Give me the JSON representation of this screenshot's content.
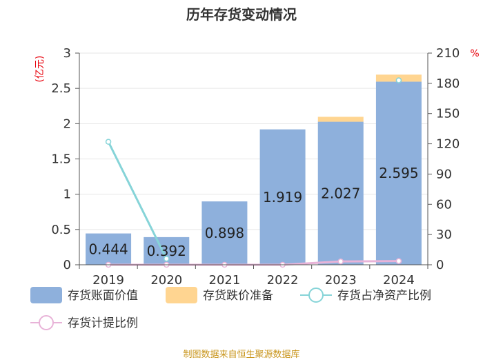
{
  "title": "历年存货变动情况",
  "left_unit": "(亿元)",
  "right_unit": "%",
  "source": "制图数据来自恒生聚源数据库",
  "colors": {
    "book_value": "#8eb0dc",
    "provision": "#ffd591",
    "ratio_net_assets": "#86d4d8",
    "provision_ratio": "#e8b3d8"
  },
  "chart_data": {
    "type": "bar",
    "categories": [
      "2019",
      "2020",
      "2021",
      "2022",
      "2023",
      "2024"
    ],
    "y_left": {
      "min": 0,
      "max": 3,
      "ticks": [
        "0",
        "0.5",
        "1",
        "1.5",
        "2",
        "2.5",
        "3"
      ]
    },
    "y_right": {
      "min": 0,
      "max": 210,
      "ticks": [
        "0",
        "30",
        "60",
        "90",
        "120",
        "150",
        "180",
        "210"
      ]
    },
    "series": [
      {
        "name": "存货账面价值",
        "kind": "bar",
        "axis": "left",
        "values": [
          0.444,
          0.392,
          0.898,
          1.919,
          2.027,
          2.595
        ],
        "labels": [
          "0.444",
          "0.392",
          "0.898",
          "1.919",
          "2.027",
          "2.595"
        ]
      },
      {
        "name": "存货跌价准备",
        "kind": "bar-stack",
        "axis": "left",
        "values": [
          0,
          0,
          0,
          0,
          0.07,
          0.1
        ]
      },
      {
        "name": "存货占净资产比例",
        "kind": "line",
        "axis": "right",
        "values": [
          122,
          6,
          null,
          null,
          null,
          183
        ]
      },
      {
        "name": "存货计提比例",
        "kind": "line",
        "axis": "right",
        "values": [
          0,
          0,
          0,
          0,
          3.3,
          3.7
        ]
      }
    ],
    "grid": true,
    "legend": "bottom"
  }
}
